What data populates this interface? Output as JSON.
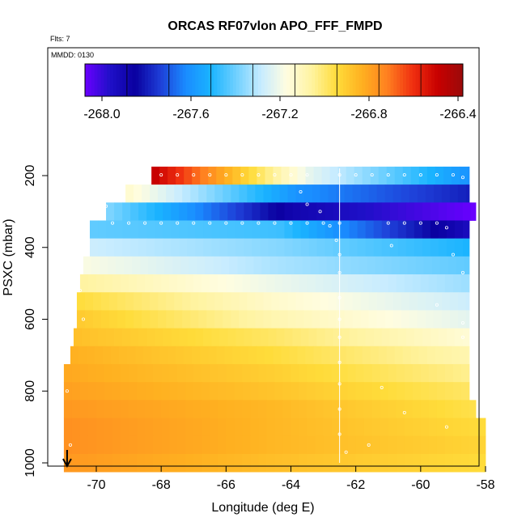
{
  "chart_data": {
    "type": "heatmap",
    "title": "ORCAS RF07vlon APO_FFF_FMPD",
    "subtitle": "Flts: 7",
    "annotation": "MMDD: 0130",
    "xlabel": "Longitude (deg E)",
    "ylabel": "PSXC (mbar)",
    "xlim": [
      -71.2,
      -57.8
    ],
    "ylim": [
      1010,
      150
    ],
    "y_reversed": true,
    "x_ticks": [
      -70,
      -68,
      -66,
      -64,
      -62,
      -60,
      -58
    ],
    "y_ticks": [
      200,
      400,
      600,
      800,
      1000
    ],
    "colorbar": {
      "range": [
        -268.2,
        -266.4
      ],
      "ticks": [
        -268.0,
        -267.6,
        -267.2,
        -266.8,
        -266.4
      ],
      "tick_labels": [
        "-268.0",
        "-267.6",
        "-267.2",
        "-266.8",
        "-266.4"
      ],
      "colors": [
        "#6a00ff",
        "#1f10c8",
        "#0a00a0",
        "#1e3fd8",
        "#1a8cff",
        "#1ab4ff",
        "#6fd0ff",
        "#c8ecff",
        "#fffde0",
        "#fff3a0",
        "#ffdc3a",
        "#ffb020",
        "#ff8020",
        "#f03010",
        "#c80000",
        "#9a0a0a"
      ]
    },
    "pressure_bands": [
      {
        "p": 200,
        "lon_min": -68.3,
        "lon_max": -58.5,
        "v_west": -266.5,
        "v_mid": -267.3,
        "v_east": -267.7
      },
      {
        "p": 250,
        "lon_min": -69.1,
        "lon_max": -58.5,
        "v_west": -267.2,
        "v_mid": -267.7,
        "v_east": -267.9
      },
      {
        "p": 300,
        "lon_min": -69.7,
        "lon_max": -58.3,
        "v_west": -267.45,
        "v_mid": -268.0,
        "v_east": -268.2
      },
      {
        "p": 350,
        "lon_min": -70.2,
        "lon_max": -58.5,
        "v_west": -267.5,
        "v_mid": -267.55,
        "v_east": -268.05
      },
      {
        "p": 400,
        "lon_min": -70.2,
        "lon_max": -58.5,
        "v_west": -267.35,
        "v_mid": -267.45,
        "v_east": -267.6
      },
      {
        "p": 450,
        "lon_min": -70.4,
        "lon_max": -58.5,
        "v_west": -267.25,
        "v_mid": -267.4,
        "v_east": -267.5
      },
      {
        "p": 500,
        "lon_min": -70.5,
        "lon_max": -58.5,
        "v_west": -267.12,
        "v_mid": -267.28,
        "v_east": -267.42
      },
      {
        "p": 550,
        "lon_min": -70.6,
        "lon_max": -58.5,
        "v_west": -267.0,
        "v_mid": -267.2,
        "v_east": -267.35
      },
      {
        "p": 600,
        "lon_min": -70.6,
        "lon_max": -58.5,
        "v_west": -266.95,
        "v_mid": -267.15,
        "v_east": -267.3
      },
      {
        "p": 650,
        "lon_min": -70.7,
        "lon_max": -58.5,
        "v_west": -266.92,
        "v_mid": -267.05,
        "v_east": -267.22
      },
      {
        "p": 700,
        "lon_min": -70.8,
        "lon_max": -58.5,
        "v_west": -266.88,
        "v_mid": -267.0,
        "v_east": -267.15
      },
      {
        "p": 750,
        "lon_min": -71.0,
        "lon_max": -58.5,
        "v_west": -266.86,
        "v_mid": -266.96,
        "v_east": -267.1
      },
      {
        "p": 800,
        "lon_min": -71.0,
        "lon_max": -58.5,
        "v_west": -266.84,
        "v_mid": -266.93,
        "v_east": -267.05
      },
      {
        "p": 850,
        "lon_min": -71.0,
        "lon_max": -58.3,
        "v_west": -266.82,
        "v_mid": -266.9,
        "v_east": -267.02
      },
      {
        "p": 900,
        "lon_min": -71.0,
        "lon_max": -58.0,
        "v_west": -266.8,
        "v_mid": -266.9,
        "v_east": -267.0
      },
      {
        "p": 950,
        "lon_min": -71.0,
        "lon_max": -58.0,
        "v_west": -266.8,
        "v_mid": -266.9,
        "v_east": -266.98
      },
      {
        "p": 1000,
        "lon_min": -71.0,
        "lon_max": -58.0,
        "v_west": -266.82,
        "v_mid": -266.92,
        "v_east": -267.0
      }
    ],
    "divider_lon": -62.5,
    "marker_lon": -70.9,
    "flight_track": [
      [
        -68.0,
        198
      ],
      [
        -67.5,
        198
      ],
      [
        -67.0,
        198
      ],
      [
        -66.5,
        198
      ],
      [
        -66.0,
        198
      ],
      [
        -65.5,
        198
      ],
      [
        -65.0,
        198
      ],
      [
        -64.5,
        198
      ],
      [
        -64.0,
        198
      ],
      [
        -63.5,
        198
      ],
      [
        -62.5,
        198
      ],
      [
        -62.0,
        198
      ],
      [
        -61.5,
        198
      ],
      [
        -61.0,
        198
      ],
      [
        -60.5,
        198
      ],
      [
        -60.0,
        198
      ],
      [
        -59.5,
        198
      ],
      [
        -59.0,
        198
      ],
      [
        -58.7,
        205
      ],
      [
        -69.5,
        258
      ],
      [
        -69.7,
        285
      ],
      [
        -69.9,
        318
      ],
      [
        -69.5,
        332
      ],
      [
        -69.0,
        332
      ],
      [
        -68.5,
        332
      ],
      [
        -68.0,
        332
      ],
      [
        -67.5,
        332
      ],
      [
        -67.0,
        332
      ],
      [
        -66.5,
        332
      ],
      [
        -66.0,
        332
      ],
      [
        -65.5,
        332
      ],
      [
        -65.0,
        332
      ],
      [
        -64.5,
        332
      ],
      [
        -64.0,
        332
      ],
      [
        -63.5,
        332
      ],
      [
        -63.0,
        332
      ],
      [
        -62.5,
        332
      ],
      [
        -61.0,
        332
      ],
      [
        -60.5,
        332
      ],
      [
        -60.0,
        332
      ],
      [
        -59.5,
        332
      ],
      [
        -59.2,
        345
      ],
      [
        -63.7,
        245
      ],
      [
        -63.5,
        280
      ],
      [
        -63.1,
        300
      ],
      [
        -62.8,
        340
      ],
      [
        -62.6,
        380
      ],
      [
        -62.5,
        420
      ],
      [
        -62.5,
        470
      ],
      [
        -62.5,
        540
      ],
      [
        -62.5,
        600
      ],
      [
        -62.5,
        650
      ],
      [
        -62.5,
        720
      ],
      [
        -62.5,
        780
      ],
      [
        -62.5,
        850
      ],
      [
        -62.5,
        920
      ],
      [
        -62.3,
        970
      ],
      [
        -70.6,
        455
      ],
      [
        -70.5,
        520
      ],
      [
        -70.4,
        600
      ],
      [
        -70.9,
        800
      ],
      [
        -70.8,
        950
      ],
      [
        -60.9,
        395
      ],
      [
        -59.0,
        420
      ],
      [
        -58.7,
        470
      ],
      [
        -59.5,
        560
      ],
      [
        -58.7,
        610
      ],
      [
        -58.7,
        650
      ],
      [
        -61.2,
        790
      ],
      [
        -60.5,
        860
      ],
      [
        -59.2,
        900
      ],
      [
        -61.6,
        950
      ]
    ]
  }
}
